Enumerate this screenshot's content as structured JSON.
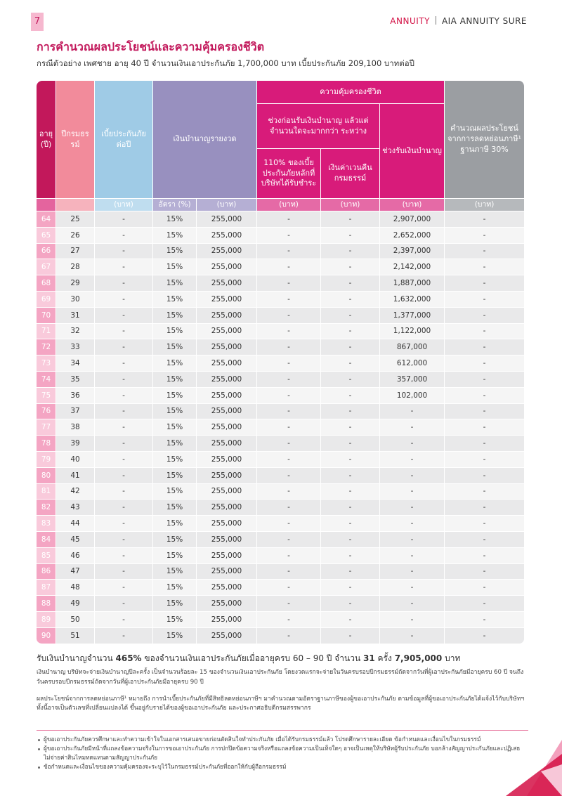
{
  "header": {
    "page_number": "7",
    "brand": "ANNUITY",
    "product": "AIA ANNUITY SURE"
  },
  "title": "การคำนวณผลประโยชน์และความคุ้มครองชีวิต",
  "subtitle": "กรณีตัวอย่าง เพศชาย อายุ 40 ปี จำนวนเงินเอาประกันภัย 1,700,000 บาท เบี้ยประกันภัย 209,100 บาทต่อปี",
  "table": {
    "headers": {
      "age": "อายุ (ปี)",
      "year": "ปีกรมธรรม์",
      "premium": "เบี้ยประกันภัยต่อปี",
      "annuity": "เงินบำนาญรายงวด",
      "coverage": "ความคุ้มครองชีวิต",
      "before": "ช่วงก่อนรับเงินบำนาญ แล้วแต่จำนวนใดจะมากกว่า ระหว่าง",
      "pct110": "110% ของเบี้ยประกันภัยหลักที่บริษัทได้รับชำระ",
      "surrender": "เงินค่าเวนคืนกรมธรรม์",
      "during": "ช่วงรับเงินบำนาญ",
      "tax": "คำนวณผลประโยชน์จากการลดหย่อนภาษี¹ ฐานภาษี 30%"
    },
    "units": [
      "(บาท)",
      "อัตรา (%)",
      "(บาท)",
      "(บาท)",
      "(บาท)",
      "(บาท)",
      "(บาท)"
    ],
    "rows": [
      [
        "64",
        "25",
        "-",
        "15%",
        "255,000",
        "-",
        "-",
        "2,907,000",
        "-"
      ],
      [
        "65",
        "26",
        "-",
        "15%",
        "255,000",
        "-",
        "-",
        "2,652,000",
        "-"
      ],
      [
        "66",
        "27",
        "-",
        "15%",
        "255,000",
        "-",
        "-",
        "2,397,000",
        "-"
      ],
      [
        "67",
        "28",
        "-",
        "15%",
        "255,000",
        "-",
        "-",
        "2,142,000",
        "-"
      ],
      [
        "68",
        "29",
        "-",
        "15%",
        "255,000",
        "-",
        "-",
        "1,887,000",
        "-"
      ],
      [
        "69",
        "30",
        "-",
        "15%",
        "255,000",
        "-",
        "-",
        "1,632,000",
        "-"
      ],
      [
        "70",
        "31",
        "-",
        "15%",
        "255,000",
        "-",
        "-",
        "1,377,000",
        "-"
      ],
      [
        "71",
        "32",
        "-",
        "15%",
        "255,000",
        "-",
        "-",
        "1,122,000",
        "-"
      ],
      [
        "72",
        "33",
        "-",
        "15%",
        "255,000",
        "-",
        "-",
        "867,000",
        "-"
      ],
      [
        "73",
        "34",
        "-",
        "15%",
        "255,000",
        "-",
        "-",
        "612,000",
        "-"
      ],
      [
        "74",
        "35",
        "-",
        "15%",
        "255,000",
        "-",
        "-",
        "357,000",
        "-"
      ],
      [
        "75",
        "36",
        "-",
        "15%",
        "255,000",
        "-",
        "-",
        "102,000",
        "-"
      ],
      [
        "76",
        "37",
        "-",
        "15%",
        "255,000",
        "-",
        "-",
        "-",
        "-"
      ],
      [
        "77",
        "38",
        "-",
        "15%",
        "255,000",
        "-",
        "-",
        "-",
        "-"
      ],
      [
        "78",
        "39",
        "-",
        "15%",
        "255,000",
        "-",
        "-",
        "-",
        "-"
      ],
      [
        "79",
        "40",
        "-",
        "15%",
        "255,000",
        "-",
        "-",
        "-",
        "-"
      ],
      [
        "80",
        "41",
        "-",
        "15%",
        "255,000",
        "-",
        "-",
        "-",
        "-"
      ],
      [
        "81",
        "42",
        "-",
        "15%",
        "255,000",
        "-",
        "-",
        "-",
        "-"
      ],
      [
        "82",
        "43",
        "-",
        "15%",
        "255,000",
        "-",
        "-",
        "-",
        "-"
      ],
      [
        "83",
        "44",
        "-",
        "15%",
        "255,000",
        "-",
        "-",
        "-",
        "-"
      ],
      [
        "84",
        "45",
        "-",
        "15%",
        "255,000",
        "-",
        "-",
        "-",
        "-"
      ],
      [
        "85",
        "46",
        "-",
        "15%",
        "255,000",
        "-",
        "-",
        "-",
        "-"
      ],
      [
        "86",
        "47",
        "-",
        "15%",
        "255,000",
        "-",
        "-",
        "-",
        "-"
      ],
      [
        "87",
        "48",
        "-",
        "15%",
        "255,000",
        "-",
        "-",
        "-",
        "-"
      ],
      [
        "88",
        "49",
        "-",
        "15%",
        "255,000",
        "-",
        "-",
        "-",
        "-"
      ],
      [
        "89",
        "50",
        "-",
        "15%",
        "255,000",
        "-",
        "-",
        "-",
        "-"
      ],
      [
        "90",
        "51",
        "-",
        "15%",
        "255,000",
        "-",
        "-",
        "-",
        "-"
      ]
    ]
  },
  "summary": [
    "รับเงินบำนาญจำนวน",
    "465%",
    "ของจำนวนเงินเอาประกันภัยเมื่ออายุครบ 60 – 90 ปี จำนวน",
    "31",
    "ครั้ง",
    "7,905,000",
    "บาท"
  ],
  "notes": [
    "เงินบำนาญ บริษัทจะจ่ายเงินบำนาญปีละครั้ง เป็นจำนวนร้อยละ 15 ของจำนวนเงินเอาประกันภัย โดยงวดแรกจะจ่ายในวันครบรอบปีกรมธรรม์ถัดจากวันที่ผู้เอาประกันภัยมีอายุครบ 60 ปี จนถึงวันครบรอบปีกรมธรรม์ถัดจากวันที่ผู้เอาประกันภัยมีอายุครบ 90 ปี",
    "ผลประโยชน์จากการลดหย่อนภาษี¹ หมายถึง การนำเบี้ยประกันภัยที่มีสิทธิลดหย่อนภาษีฯ มาคำนวณตามอัตราฐานภาษีของผู้ขอเอาประกันภัย ตามข้อมูลที่ผู้ขอเอาประกันภัยได้แจ้งไว้กับบริษัทฯ ทั้งนี้อาจเป็นตัวเลขที่เปลี่ยนแปลงได้ ขึ้นอยู่กับรายได้ของผู้ขอเอาประกันภัย และประกาศอธิบดีกรมสรรพากร"
  ],
  "bullets": [
    "ผู้ขอเอาประกันภัยควรศึกษาและทำความเข้าใจในเอกสารเสนอขายก่อนตัดสินใจทำประกันภัย เมื่อได้รับกรมธรรม์แล้ว โปรดศึกษารายละเอียด ข้อกำหนดและเงื่อนไขในกรมธรรม์",
    "ผู้ขอเอาประกันภัยมีหน้าที่แถลงข้อความจริงในการขอเอาประกันภัย การปกปิดข้อความจริงหรือแถลงข้อความเป็นเท็จใดๆ อาจเป็นเหตุให้บริษัทผู้รับประกันภัย บอกล้างสัญญาประกันภัยและปฏิเสธไม่จ่ายค่าสินไหมทดแทนตามสัญญาประกันภัย",
    "ข้อกำหนดและเงื่อนไขของความคุ้มครองจะระบุไว้ในกรมธรรม์ประกันภัยที่ออกให้กับผู้ถือกรมธรรม์"
  ]
}
